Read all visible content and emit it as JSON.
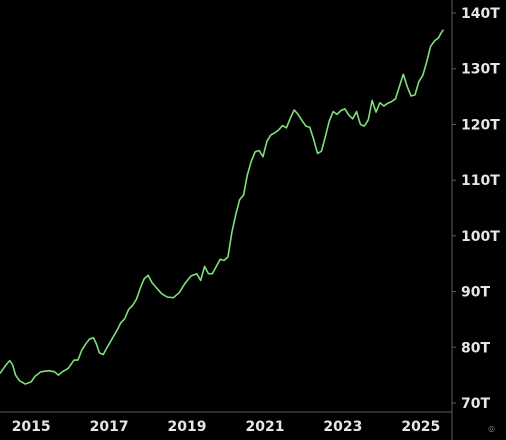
{
  "chart_data": {
    "type": "line",
    "title": "",
    "xlabel": "",
    "ylabel": "",
    "x_tick_labels": [
      "2015",
      "2017",
      "2019",
      "2021",
      "2023",
      "2025"
    ],
    "y_tick_labels": [
      "70T",
      "80T",
      "90T",
      "100T",
      "110T",
      "120T",
      "130T",
      "140T"
    ],
    "y_ticks": [
      70,
      80,
      90,
      100,
      110,
      120,
      130,
      140
    ],
    "x_ticks": [
      2015,
      2017,
      2019,
      2021,
      2023,
      2025
    ],
    "xlim": [
      2014.2,
      2025.8
    ],
    "ylim": [
      69,
      142
    ],
    "grid": false,
    "legend": "none",
    "colors": {
      "background": "#000000",
      "line": "#7ee07e",
      "axis": "#5a5a5a",
      "text": "#e6e6e6"
    },
    "series": [
      {
        "values": [
          [
            2014.2,
            75.3
          ],
          [
            2014.35,
            76.8
          ],
          [
            2014.45,
            77.6
          ],
          [
            2014.52,
            76.9
          ],
          [
            2014.6,
            75.0
          ],
          [
            2014.7,
            74.0
          ],
          [
            2014.85,
            73.4
          ],
          [
            2015.0,
            73.8
          ],
          [
            2015.1,
            74.8
          ],
          [
            2015.25,
            75.6
          ],
          [
            2015.45,
            75.8
          ],
          [
            2015.6,
            75.6
          ],
          [
            2015.7,
            75.0
          ],
          [
            2015.8,
            75.6
          ],
          [
            2015.95,
            76.2
          ],
          [
            2016.1,
            77.7
          ],
          [
            2016.2,
            77.7
          ],
          [
            2016.3,
            79.5
          ],
          [
            2016.4,
            80.6
          ],
          [
            2016.5,
            81.5
          ],
          [
            2016.6,
            81.7
          ],
          [
            2016.68,
            80.5
          ],
          [
            2016.75,
            79.0
          ],
          [
            2016.85,
            78.7
          ],
          [
            2016.95,
            80.0
          ],
          [
            2017.1,
            81.8
          ],
          [
            2017.2,
            83.0
          ],
          [
            2017.3,
            84.4
          ],
          [
            2017.4,
            85.1
          ],
          [
            2017.5,
            86.8
          ],
          [
            2017.6,
            87.5
          ],
          [
            2017.7,
            88.6
          ],
          [
            2017.8,
            90.6
          ],
          [
            2017.9,
            92.3
          ],
          [
            2018.0,
            92.9
          ],
          [
            2018.1,
            91.6
          ],
          [
            2018.2,
            90.8
          ],
          [
            2018.35,
            89.6
          ],
          [
            2018.5,
            89.0
          ],
          [
            2018.65,
            88.9
          ],
          [
            2018.8,
            89.8
          ],
          [
            2018.95,
            91.5
          ],
          [
            2019.1,
            92.8
          ],
          [
            2019.25,
            93.2
          ],
          [
            2019.35,
            92.0
          ],
          [
            2019.45,
            94.5
          ],
          [
            2019.55,
            93.2
          ],
          [
            2019.65,
            93.2
          ],
          [
            2019.75,
            94.5
          ],
          [
            2019.85,
            95.8
          ],
          [
            2019.95,
            95.6
          ],
          [
            2020.05,
            96.2
          ],
          [
            2020.15,
            100.6
          ],
          [
            2020.25,
            103.8
          ],
          [
            2020.35,
            106.5
          ],
          [
            2020.45,
            107.3
          ],
          [
            2020.55,
            111.0
          ],
          [
            2020.65,
            113.4
          ],
          [
            2020.75,
            115.1
          ],
          [
            2020.85,
            115.3
          ],
          [
            2020.95,
            114.2
          ],
          [
            2021.05,
            117.0
          ],
          [
            2021.15,
            118.1
          ],
          [
            2021.25,
            118.5
          ],
          [
            2021.35,
            119.0
          ],
          [
            2021.45,
            119.8
          ],
          [
            2021.55,
            119.4
          ],
          [
            2021.65,
            121.1
          ],
          [
            2021.75,
            122.6
          ],
          [
            2021.85,
            121.8
          ],
          [
            2021.95,
            120.7
          ],
          [
            2022.05,
            119.7
          ],
          [
            2022.15,
            119.5
          ],
          [
            2022.25,
            117.3
          ],
          [
            2022.35,
            114.8
          ],
          [
            2022.45,
            115.2
          ],
          [
            2022.55,
            117.8
          ],
          [
            2022.65,
            120.6
          ],
          [
            2022.75,
            122.3
          ],
          [
            2022.85,
            121.8
          ],
          [
            2022.95,
            122.5
          ],
          [
            2023.05,
            122.8
          ],
          [
            2023.15,
            121.7
          ],
          [
            2023.25,
            121.0
          ],
          [
            2023.35,
            122.3
          ],
          [
            2023.45,
            120.0
          ],
          [
            2023.55,
            119.7
          ],
          [
            2023.65,
            120.8
          ],
          [
            2023.75,
            124.3
          ],
          [
            2023.85,
            122.2
          ],
          [
            2023.95,
            123.9
          ],
          [
            2024.05,
            123.3
          ],
          [
            2024.15,
            123.8
          ],
          [
            2024.25,
            124.1
          ],
          [
            2024.35,
            124.6
          ],
          [
            2024.45,
            126.8
          ],
          [
            2024.55,
            129.0
          ],
          [
            2024.65,
            126.8
          ],
          [
            2024.75,
            125.1
          ],
          [
            2024.85,
            125.3
          ],
          [
            2024.95,
            127.7
          ],
          [
            2025.05,
            128.8
          ],
          [
            2025.15,
            131.2
          ],
          [
            2025.25,
            134.0
          ],
          [
            2025.35,
            135.0
          ],
          [
            2025.45,
            135.5
          ],
          [
            2025.52,
            136.4
          ],
          [
            2025.58,
            137.0
          ]
        ]
      }
    ]
  },
  "watermark": {
    "glyph": "◎"
  }
}
